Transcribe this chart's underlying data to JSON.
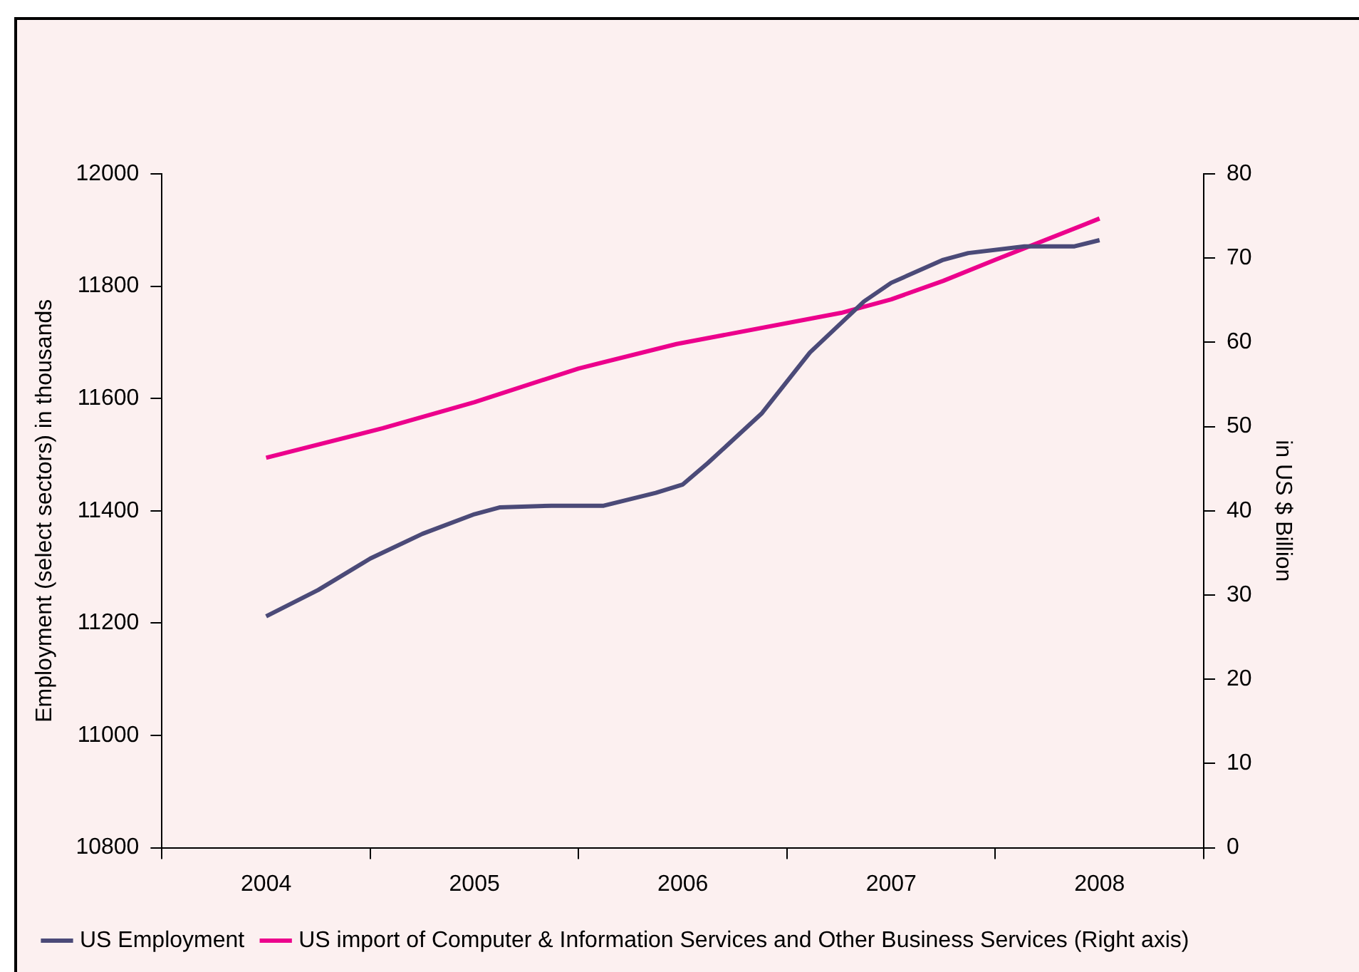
{
  "chart_data": {
    "type": "line",
    "xlabel": null,
    "ylabel": "Employment (select sectors) in thousands",
    "y2label": "in US $ Billion",
    "xlim": [
      2003.5,
      2008.5
    ],
    "xticks": [
      {
        "value": 2003.5,
        "label": null
      },
      {
        "value": 2004,
        "label": "2004"
      },
      {
        "value": 2004.5,
        "label": null
      },
      {
        "value": 2005,
        "label": "2005"
      },
      {
        "value": 2005.5,
        "label": null
      },
      {
        "value": 2006,
        "label": "2006"
      },
      {
        "value": 2006.5,
        "label": null
      },
      {
        "value": 2007,
        "label": "2007"
      },
      {
        "value": 2007.5,
        "label": null
      },
      {
        "value": 2008,
        "label": "2008"
      },
      {
        "value": 2008.5,
        "label": null
      }
    ],
    "ylim": [
      10800,
      12000
    ],
    "yticks": [
      10800,
      11000,
      11200,
      11400,
      11600,
      11800,
      12000
    ],
    "y2lim": [
      0,
      80
    ],
    "y2ticks": [
      0,
      10,
      20,
      30,
      40,
      50,
      60,
      70,
      80
    ],
    "legend": "bottom",
    "series": [
      {
        "name": "US Employment",
        "color": "#4b4a78",
        "x": [
          2004.0,
          2004.25,
          2004.5,
          2004.75,
          2005.0,
          2005.12,
          2005.37,
          2005.62,
          2005.87,
          2006.0,
          2006.12,
          2006.38,
          2006.61,
          2006.87,
          2007.0,
          2007.25,
          2007.37,
          2007.64,
          2007.88,
          2008.0
        ],
        "values": [
          11212,
          11259,
          11315,
          11359,
          11394,
          11406,
          11409,
          11409,
          11432,
          11447,
          11485,
          11574,
          11682,
          11773,
          11806,
          11847,
          11859,
          11871,
          11871,
          11882
        ]
      },
      {
        "name": "US import of Computer & Information Services and Other Business Services (Right axis)",
        "color": "#ec008c",
        "axis": "y2",
        "x": [
          2004.0,
          2004.56,
          2005.0,
          2005.5,
          2005.97,
          2006.76,
          2007.0,
          2007.25,
          2007.5,
          2008.0
        ],
        "values": [
          46.3,
          49.8,
          52.9,
          56.9,
          59.8,
          63.5,
          65.1,
          67.3,
          69.8,
          74.7
        ]
      }
    ]
  }
}
